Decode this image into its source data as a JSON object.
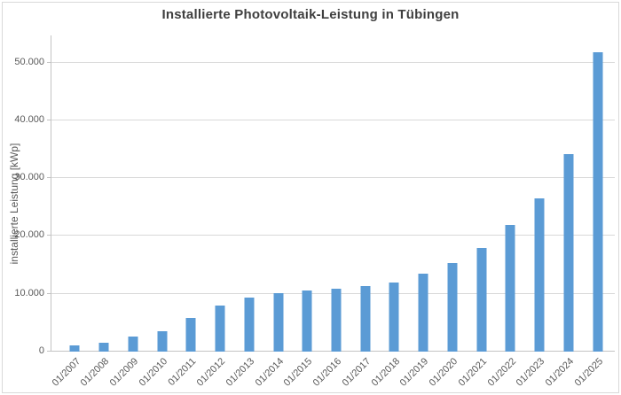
{
  "chart": {
    "title": "Installierte Photovoltaik-Leistung in Tübingen",
    "y_axis_title": "installierte Leistung [kWp]"
  },
  "chart_data": {
    "type": "bar",
    "title": "Installierte Photovoltaik-Leistung in Tübingen",
    "xlabel": "",
    "ylabel": "installierte Leistung [kWp]",
    "categories": [
      "01/2007",
      "01/2008",
      "01/2009",
      "01/2010",
      "01/2011",
      "01/2012",
      "01/2013",
      "01/2014",
      "01/2015",
      "01/2016",
      "01/2017",
      "01/2018",
      "01/2019",
      "01/2020",
      "01/2021",
      "01/2022",
      "01/2023",
      "01/2024",
      "01/2025"
    ],
    "values": [
      1000,
      1500,
      2600,
      3600,
      5800,
      7900,
      9300,
      10100,
      10600,
      10900,
      11400,
      11900,
      13500,
      15300,
      18000,
      21900,
      26500,
      34200,
      51800
    ],
    "y_ticks": [
      {
        "value": 0,
        "label": "0"
      },
      {
        "value": 10000,
        "label": "10.000"
      },
      {
        "value": 20000,
        "label": "20.000"
      },
      {
        "value": 30000,
        "label": "30.000"
      },
      {
        "value": 40000,
        "label": "40.000"
      },
      {
        "value": 50000,
        "label": "50.000"
      }
    ],
    "ylim": [
      0,
      54700
    ],
    "grid": "horizontal",
    "legend": "none",
    "colors": {
      "bar": "#5b9bd5",
      "gridline": "#d9d9d9",
      "axis_line": "#c3c3c3",
      "tick_label": "#595959",
      "title": "#3f3f3f"
    }
  }
}
